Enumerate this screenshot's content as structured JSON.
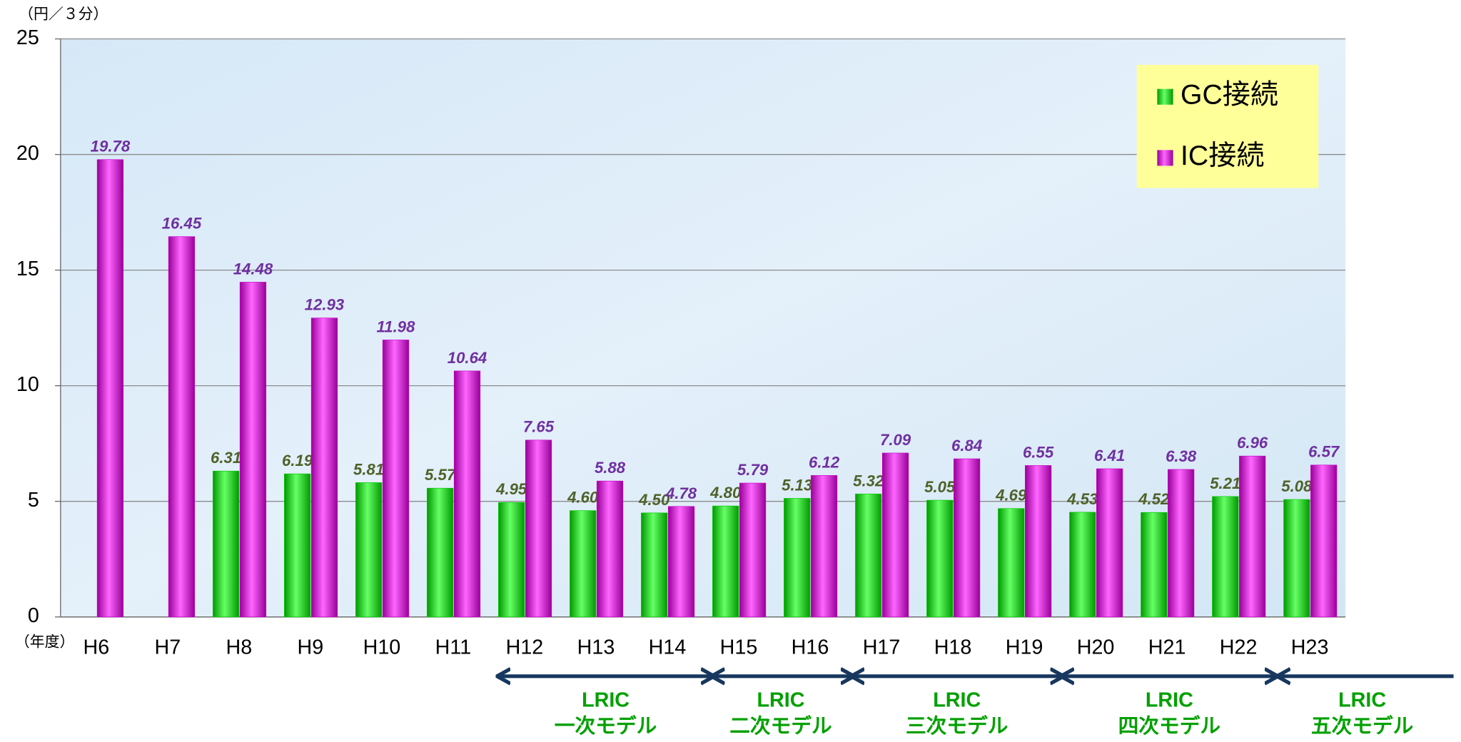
{
  "chart_data": {
    "type": "bar",
    "y_axis_label": "（円／３分）",
    "x_axis_label": "（年度）",
    "categories": [
      "H6",
      "H7",
      "H8",
      "H9",
      "H10",
      "H11",
      "H12",
      "H13",
      "H14",
      "H15",
      "H16",
      "H17",
      "H18",
      "H19",
      "H20",
      "H21",
      "H22",
      "H23"
    ],
    "series": [
      {
        "name": "GC接続",
        "color": "#00cc00",
        "values": [
          null,
          null,
          6.31,
          6.19,
          5.81,
          5.57,
          4.95,
          4.6,
          4.5,
          4.8,
          5.13,
          5.32,
          5.05,
          4.69,
          4.53,
          4.52,
          5.21,
          5.08
        ],
        "value_labels": [
          null,
          null,
          "6.31",
          "6.19",
          "5.81",
          "5.57",
          "4.95",
          "4.60",
          "4.50",
          "4.80",
          "5.13",
          "5.32",
          "5.05",
          "4.69",
          "4.53",
          "4.52",
          "5.21",
          "5.08"
        ]
      },
      {
        "name": "IC接続",
        "color": "#cc00cc",
        "values": [
          19.78,
          16.45,
          14.48,
          12.93,
          11.98,
          10.64,
          7.65,
          5.88,
          4.78,
          5.79,
          6.12,
          7.09,
          6.84,
          6.55,
          6.41,
          6.38,
          6.96,
          6.57
        ],
        "value_labels": [
          "19.78",
          "16.45",
          "14.48",
          "12.93",
          "11.98",
          "10.64",
          "7.65",
          "5.88",
          "4.78",
          "5.79",
          "6.12",
          "7.09",
          "6.84",
          "6.55",
          "6.41",
          "6.38",
          "6.96",
          "6.57"
        ]
      }
    ],
    "ylim": [
      0,
      25
    ],
    "yticks": [
      0,
      5,
      10,
      15,
      20,
      25
    ],
    "grid": true,
    "legend": "top-right",
    "annotations": [
      {
        "line1": "LRIC",
        "line2": "一次モデル"
      },
      {
        "line1": "LRIC",
        "line2": "二次モデル"
      },
      {
        "line1": "LRIC",
        "line2": "三次モデル"
      },
      {
        "line1": "LRIC",
        "line2": "四次モデル"
      },
      {
        "line1": "LRIC",
        "line2": "五次モデル"
      }
    ]
  }
}
